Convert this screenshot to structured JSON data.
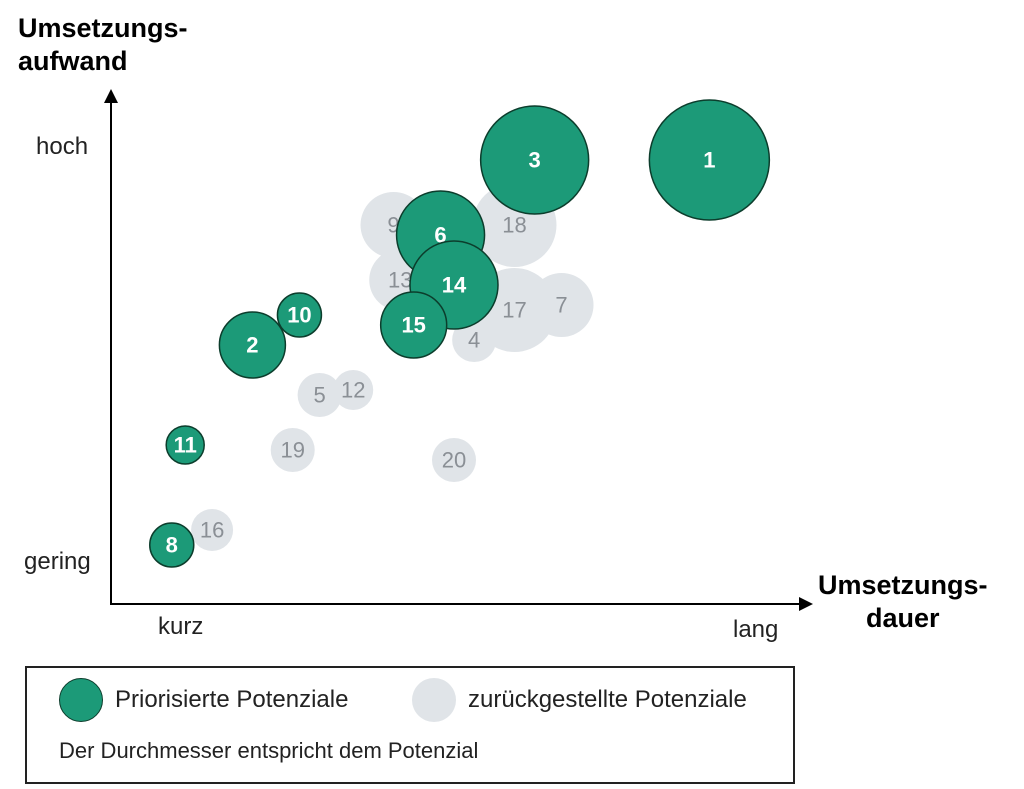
{
  "colors": {
    "prioritized": "#1c9a78",
    "prioritized_outline": "#0c3d2c",
    "deferred": "#e0e4e8",
    "deferred_text": "#8a8f95"
  },
  "chart_data": {
    "type": "bubble",
    "ylabel_lines": [
      "Umsetzungs-",
      "aufwand"
    ],
    "xlabel_lines": [
      "Umsetzungs-",
      "dauer"
    ],
    "y_tick_labels": {
      "high": "hoch",
      "low": "gering"
    },
    "x_tick_labels": {
      "low": "kurz",
      "high": "lang"
    },
    "x_range": [
      0,
      100
    ],
    "y_range": [
      0,
      100
    ],
    "size_meaning": "Der Durchmesser entspricht dem Potenzial",
    "series": [
      {
        "name": "Priorisierte Potenziale",
        "points": [
          {
            "id": "1",
            "x": 88,
            "y": 88,
            "diameter": 120
          },
          {
            "id": "3",
            "x": 62,
            "y": 88,
            "diameter": 108
          },
          {
            "id": "6",
            "x": 48,
            "y": 73,
            "diameter": 88
          },
          {
            "id": "14",
            "x": 50,
            "y": 63,
            "diameter": 88
          },
          {
            "id": "15",
            "x": 44,
            "y": 55,
            "diameter": 66
          },
          {
            "id": "2",
            "x": 20,
            "y": 51,
            "diameter": 66
          },
          {
            "id": "10",
            "x": 27,
            "y": 57,
            "diameter": 44
          },
          {
            "id": "11",
            "x": 10,
            "y": 31,
            "diameter": 38
          },
          {
            "id": "8",
            "x": 8,
            "y": 11,
            "diameter": 44
          }
        ]
      },
      {
        "name": "zurückgestellte Potenziale",
        "points": [
          {
            "id": "9",
            "x": 41,
            "y": 75,
            "diameter": 66
          },
          {
            "id": "18",
            "x": 59,
            "y": 75,
            "diameter": 84
          },
          {
            "id": "13",
            "x": 42,
            "y": 64,
            "diameter": 62
          },
          {
            "id": "17",
            "x": 59,
            "y": 58,
            "diameter": 84
          },
          {
            "id": "7",
            "x": 66,
            "y": 59,
            "diameter": 64
          },
          {
            "id": "4",
            "x": 53,
            "y": 52,
            "diameter": 44
          },
          {
            "id": "5",
            "x": 30,
            "y": 41,
            "diameter": 44
          },
          {
            "id": "12",
            "x": 35,
            "y": 42,
            "diameter": 40
          },
          {
            "id": "19",
            "x": 26,
            "y": 30,
            "diameter": 44
          },
          {
            "id": "20",
            "x": 50,
            "y": 28,
            "diameter": 44
          },
          {
            "id": "16",
            "x": 14,
            "y": 14,
            "diameter": 42
          }
        ]
      }
    ]
  },
  "legend": {
    "prioritized_label": "Priorisierte Potenziale",
    "deferred_label": "zurückgestellte Potenziale",
    "note": "Der Durchmesser entspricht dem Potenzial"
  }
}
